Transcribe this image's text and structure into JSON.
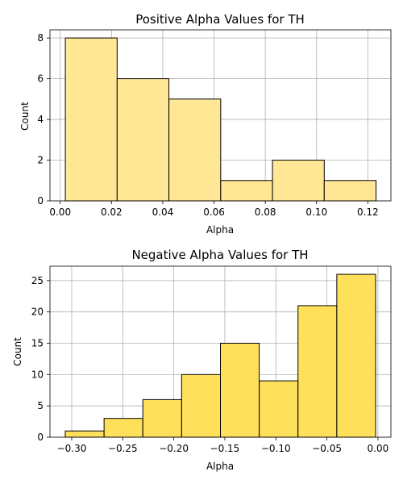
{
  "chart_data": [
    {
      "type": "bar",
      "title": "Positive Alpha Values for TH",
      "xlabel": "Alpha",
      "ylabel": "Count",
      "bin_edges": [
        0.002,
        0.0222,
        0.0424,
        0.0626,
        0.0828,
        0.103,
        0.1232
      ],
      "values": [
        8,
        6,
        5,
        1,
        2,
        1
      ],
      "xlim": [
        -0.004,
        0.129
      ],
      "ylim": [
        0,
        8.4
      ],
      "xticks": [
        0.0,
        0.02,
        0.04,
        0.06,
        0.08,
        0.1,
        0.12
      ],
      "xtick_labels": [
        "0.00",
        "0.02",
        "0.04",
        "0.06",
        "0.08",
        "0.10",
        "0.12"
      ],
      "yticks": [
        0,
        2,
        4,
        6,
        8
      ],
      "ytick_labels": [
        "0",
        "2",
        "4",
        "6",
        "8"
      ],
      "bar_color": "#ffe795",
      "grid": true
    },
    {
      "type": "bar",
      "title": "Negative Alpha Values for TH",
      "xlabel": "Alpha",
      "ylabel": "Count",
      "bin_edges": [
        -0.3063,
        -0.2683,
        -0.2303,
        -0.1923,
        -0.1543,
        -0.1163,
        -0.0783,
        -0.0403,
        -0.0023
      ],
      "values": [
        1,
        3,
        6,
        10,
        15,
        9,
        21,
        26
      ],
      "xlim": [
        -0.3213,
        0.0127
      ],
      "ylim": [
        0,
        27.3
      ],
      "xticks": [
        -0.3,
        -0.25,
        -0.2,
        -0.15,
        -0.1,
        -0.05,
        0.0
      ],
      "xtick_labels": [
        "−0.30",
        "−0.25",
        "−0.20",
        "−0.15",
        "−0.10",
        "−0.05",
        "0.00"
      ],
      "yticks": [
        0,
        5,
        10,
        15,
        20,
        25
      ],
      "ytick_labels": [
        "0",
        "5",
        "10",
        "15",
        "20",
        "25"
      ],
      "bar_color": "#ffe05b",
      "grid": true
    }
  ]
}
